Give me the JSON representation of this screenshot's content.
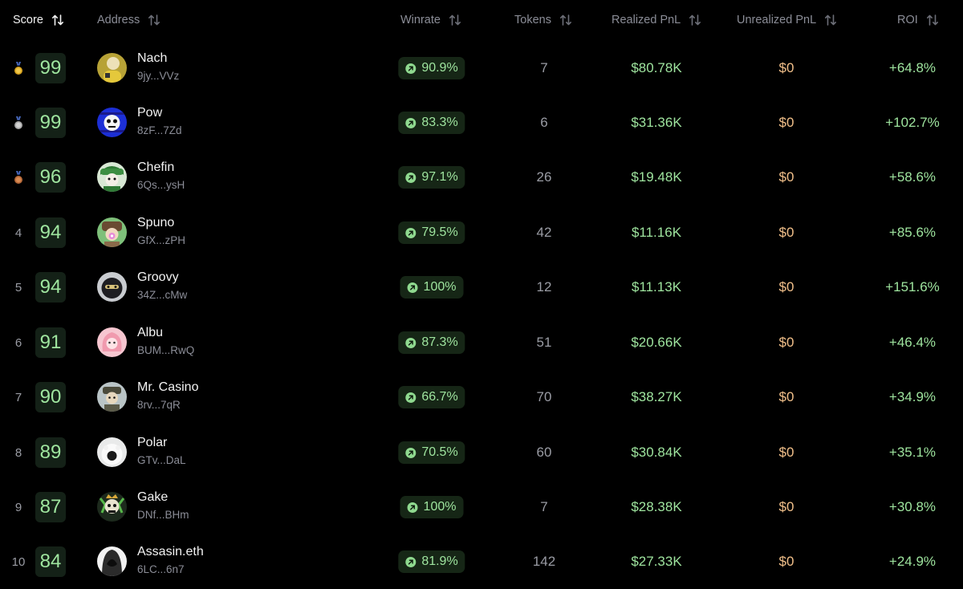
{
  "headers": {
    "score": "Score",
    "address": "Address",
    "winrate": "Winrate",
    "tokens": "Tokens",
    "realized": "Realized PnL",
    "unrealized": "Unrealized PnL",
    "roi": "ROI",
    "sort_icon": "sort-arrows-icon"
  },
  "colors": {
    "background": "#000000",
    "positive": "#9fe59f",
    "pending": "#f2c08a",
    "gold": "#d9a520",
    "silver": "#a8a8a8",
    "bronze": "#b86a3a"
  },
  "rows": [
    {
      "rank": "",
      "medal": "gold-medal-icon",
      "score": "99",
      "name": "Nach",
      "address": "9jy...VVz",
      "winrate": "90.9%",
      "tokens": "7",
      "realized": "$80.78K",
      "unrealized": "$0",
      "roi": "+64.8%"
    },
    {
      "rank": "",
      "medal": "silver-medal-icon",
      "score": "99",
      "name": "Pow",
      "address": "8zF...7Zd",
      "winrate": "83.3%",
      "tokens": "6",
      "realized": "$31.36K",
      "unrealized": "$0",
      "roi": "+102.7%"
    },
    {
      "rank": "",
      "medal": "bronze-medal-icon",
      "score": "96",
      "name": "Chefin",
      "address": "6Qs...ysH",
      "winrate": "97.1%",
      "tokens": "26",
      "realized": "$19.48K",
      "unrealized": "$0",
      "roi": "+58.6%"
    },
    {
      "rank": "4",
      "medal": "",
      "score": "94",
      "name": "Spuno",
      "address": "GfX...zPH",
      "winrate": "79.5%",
      "tokens": "42",
      "realized": "$11.16K",
      "unrealized": "$0",
      "roi": "+85.6%"
    },
    {
      "rank": "5",
      "medal": "",
      "score": "94",
      "name": "Groovy",
      "address": "34Z...cMw",
      "winrate": "100%",
      "tokens": "12",
      "realized": "$11.13K",
      "unrealized": "$0",
      "roi": "+151.6%"
    },
    {
      "rank": "6",
      "medal": "",
      "score": "91",
      "name": "Albu",
      "address": "BUM...RwQ",
      "winrate": "87.3%",
      "tokens": "51",
      "realized": "$20.66K",
      "unrealized": "$0",
      "roi": "+46.4%"
    },
    {
      "rank": "7",
      "medal": "",
      "score": "90",
      "name": "Mr. Casino",
      "address": "8rv...7qR",
      "winrate": "66.7%",
      "tokens": "70",
      "realized": "$38.27K",
      "unrealized": "$0",
      "roi": "+34.9%"
    },
    {
      "rank": "8",
      "medal": "",
      "score": "89",
      "name": "Polar",
      "address": "GTv...DaL",
      "winrate": "70.5%",
      "tokens": "60",
      "realized": "$30.84K",
      "unrealized": "$0",
      "roi": "+35.1%"
    },
    {
      "rank": "9",
      "medal": "",
      "score": "87",
      "name": "Gake",
      "address": "DNf...BHm",
      "winrate": "100%",
      "tokens": "7",
      "realized": "$28.38K",
      "unrealized": "$0",
      "roi": "+30.8%"
    },
    {
      "rank": "10",
      "medal": "",
      "score": "84",
      "name": "Assasin.eth",
      "address": "6LC...6n7",
      "winrate": "81.9%",
      "tokens": "142",
      "realized": "$27.33K",
      "unrealized": "$0",
      "roi": "+24.9%"
    }
  ]
}
